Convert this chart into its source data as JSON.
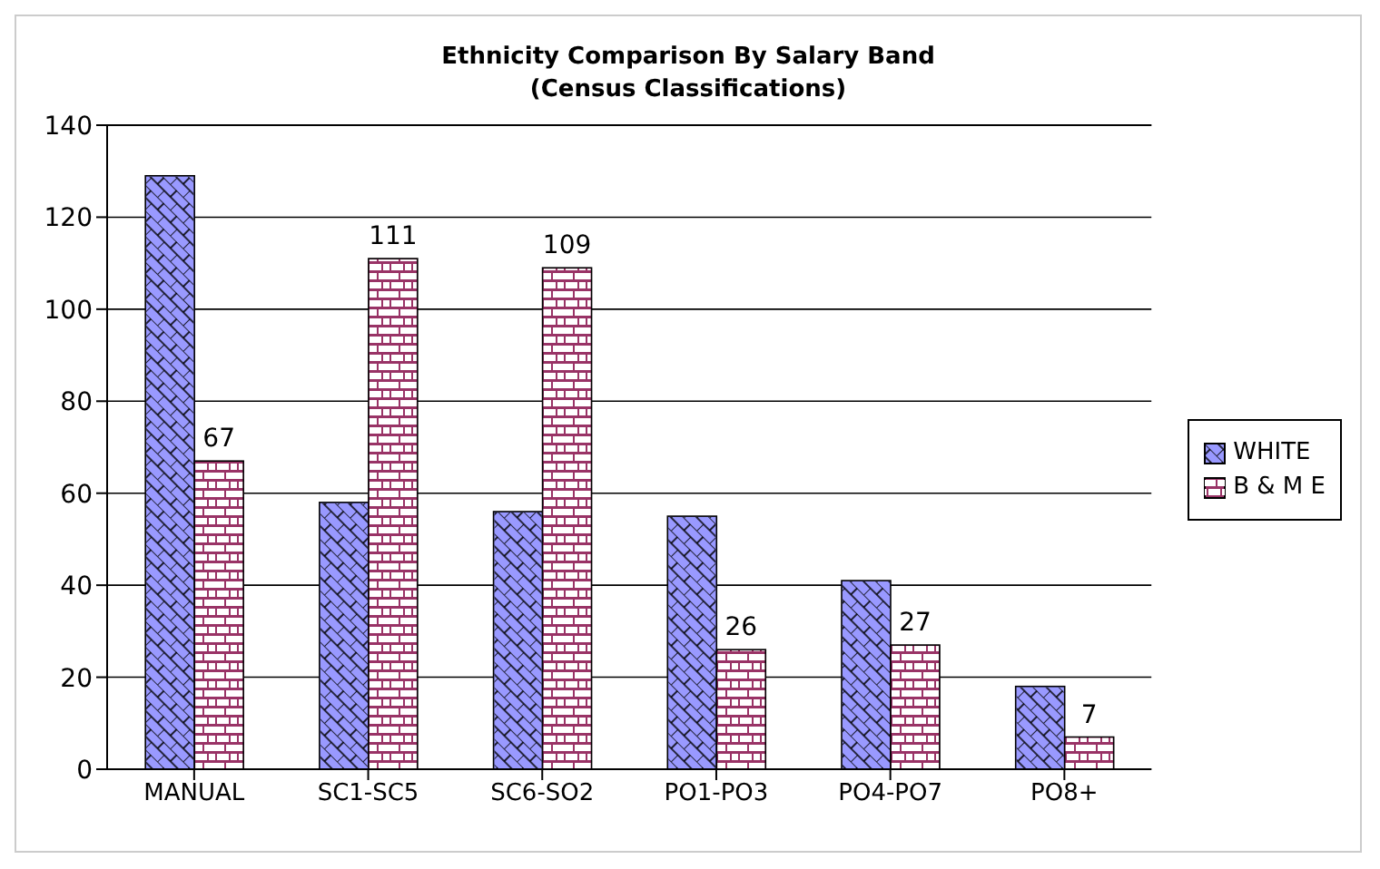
{
  "chart_data": {
    "type": "bar",
    "title": "Ethnicity Comparison By Salary Band",
    "subtitle": "(Census Classifications)",
    "categories": [
      "MANUAL",
      "SC1-SC5",
      "SC6-SO2",
      "PO1-PO3",
      "PO4-PO7",
      "PO8+"
    ],
    "series": [
      {
        "name": "WHITE",
        "color": "#9999ff",
        "values": [
          129,
          58,
          56,
          55,
          41,
          18
        ]
      },
      {
        "name": "B & M E",
        "color": "#993366",
        "values": [
          67,
          111,
          109,
          26,
          27,
          7
        ],
        "value_labels": [
          "67",
          "111",
          "109",
          "26",
          "27",
          "7"
        ]
      }
    ],
    "ylim": [
      0,
      140
    ],
    "yticks": [
      0,
      20,
      40,
      60,
      80,
      100,
      120,
      140
    ],
    "grid": "y",
    "legend": "right"
  }
}
